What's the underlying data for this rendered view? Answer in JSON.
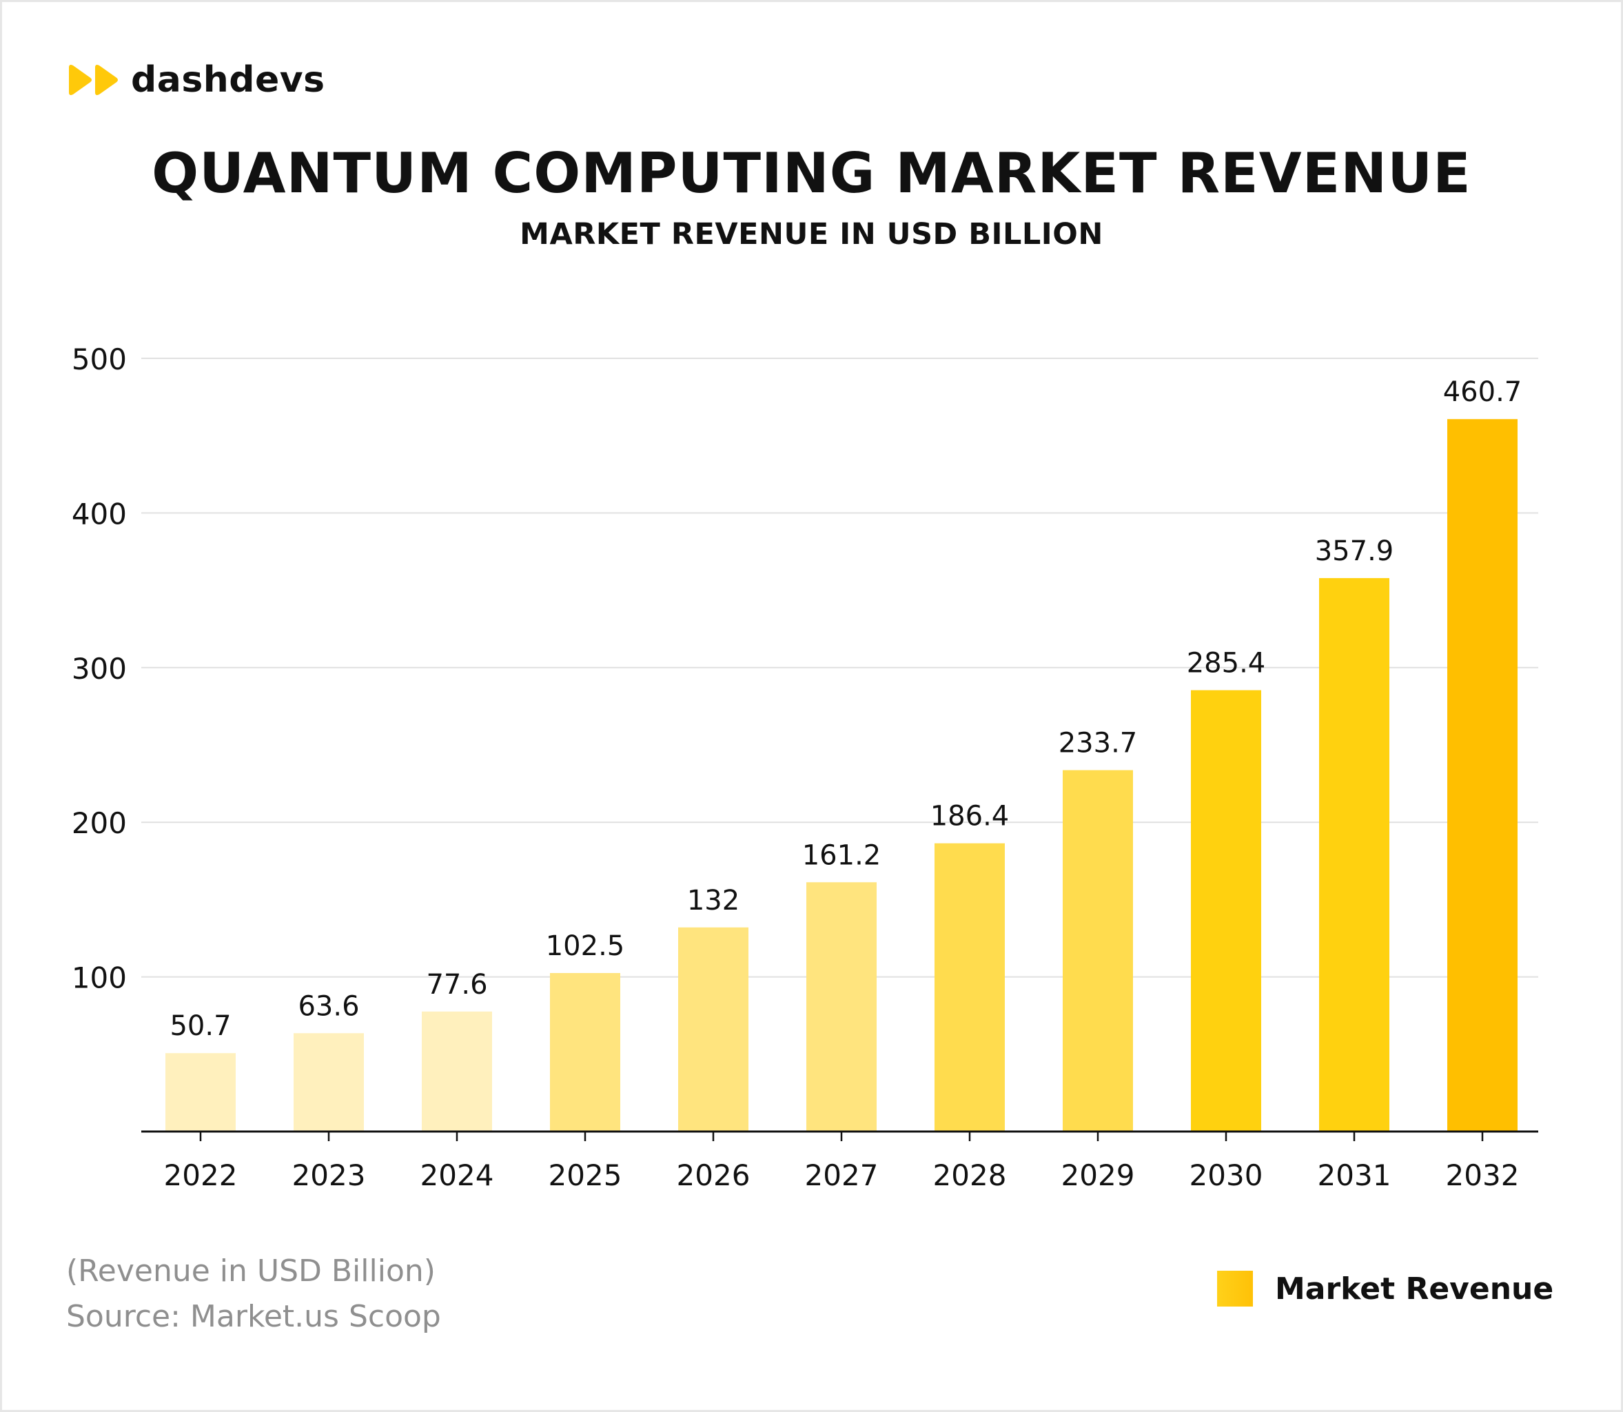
{
  "brand": {
    "name": "dashdevs",
    "accent": "#ffc90a"
  },
  "title": "QUANTUM COMPUTING MARKET REVENUE",
  "subtitle": "MARKET REVENUE IN USD BILLION",
  "footnote": {
    "line1": "(Revenue in USD Billion)",
    "line2": "Source: Market.us Scoop"
  },
  "legend": {
    "label": "Market Revenue"
  },
  "chart_data": {
    "type": "bar",
    "categories": [
      "2022",
      "2023",
      "2024",
      "2025",
      "2026",
      "2027",
      "2028",
      "2029",
      "2030",
      "2031",
      "2032"
    ],
    "series": [
      {
        "name": "Market Revenue",
        "values": [
          50.7,
          63.6,
          77.6,
          102.5,
          132,
          161.2,
          186.4,
          233.7,
          285.4,
          357.9,
          460.7
        ],
        "labels": [
          "50.7",
          "63.6",
          "77.6",
          "102.5",
          "132",
          "161.2",
          "186.4",
          "233.7",
          "285.4",
          "357.9",
          "460.7"
        ],
        "colors": [
          "#fff0bd",
          "#fff0bd",
          "#fff0bd",
          "#ffe47e",
          "#ffe47e",
          "#ffe47e",
          "#ffdc4e",
          "#ffdc4e",
          "#ffd10f",
          "#ffd10f",
          "#ffbf00"
        ]
      }
    ],
    "title": "QUANTUM COMPUTING MARKET REVENUE",
    "subtitle": "MARKET REVENUE IN USD BILLION",
    "xlabel": "",
    "ylabel": "",
    "ylim": [
      0,
      500
    ],
    "yticks": [
      100,
      200,
      300,
      400,
      500
    ],
    "grid": true,
    "legend_position": "bottom-right",
    "colors": {
      "gridline": "#e0e0e0",
      "axis": "#111111",
      "text": "#111111"
    }
  }
}
